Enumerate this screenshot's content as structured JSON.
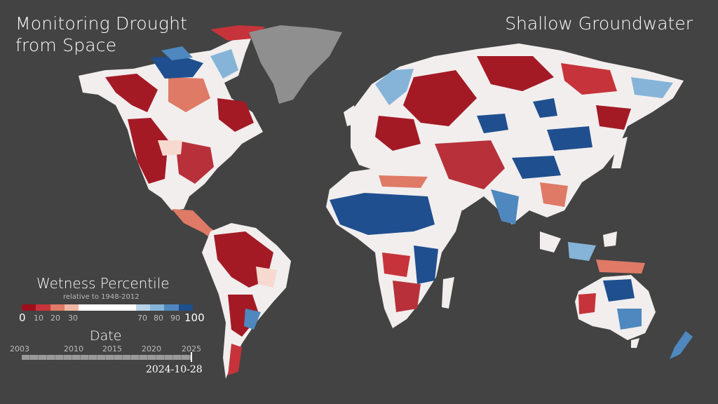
{
  "title": {
    "line1": "Monitoring Drought",
    "line2": "from Space"
  },
  "subtitle": "Shallow Groundwater",
  "legend": {
    "title": "Wetness Percentile",
    "subtitle": "relative to 1948-2012",
    "ticks": [
      "0",
      "10",
      "20",
      "30",
      "70",
      "80",
      "90",
      "100"
    ],
    "colors": [
      "#9d0f1d",
      "#c7333a",
      "#df7a66",
      "#f0b8a4",
      "#ffffff",
      "#ffffff",
      "#ffffff",
      "#ffffff",
      "#b9d4ea",
      "#85b4d8",
      "#4e88be",
      "#1d4f8d"
    ]
  },
  "date": {
    "title": "Date",
    "years": [
      "2003",
      "2010",
      "2015",
      "2020",
      "2025"
    ],
    "current": "2024-10-28"
  },
  "colors": {
    "ocean": "#434343",
    "dry": "#a31a25",
    "wet": "#1f4f8f",
    "neutral": "#f2eeee",
    "greenland": "#8f8f8f"
  }
}
